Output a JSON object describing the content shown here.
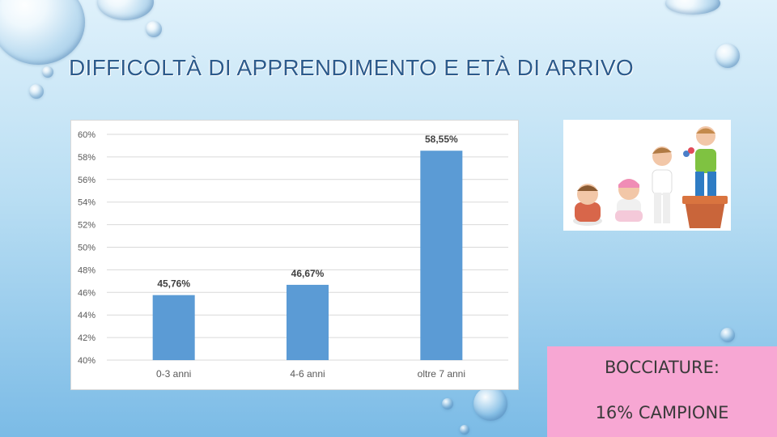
{
  "slide": {
    "title": "DIFFICOLTÀ DI APPRENDIMENTO E ETÀ DI ARRIVO",
    "callout": {
      "line1": "BOCCIATURE:",
      "line2": "16% CAMPIONE",
      "background": "#f7a7d3"
    },
    "photo_alt": "children-growing-from-flower-pot"
  },
  "chart_data": {
    "type": "bar",
    "categories": [
      "0-3 anni",
      "4-6 anni",
      "oltre 7 anni"
    ],
    "values": [
      45.76,
      46.67,
      58.55
    ],
    "data_labels": [
      "45,76%",
      "46,67%",
      "58,55%"
    ],
    "y_tick_labels": [
      "40%",
      "42%",
      "44%",
      "46%",
      "48%",
      "50%",
      "52%",
      "54%",
      "56%",
      "58%",
      "60%"
    ],
    "ylim": [
      40,
      60
    ],
    "title": "",
    "xlabel": "",
    "ylabel": "",
    "grid": true,
    "bar_color": "#5b9bd5"
  }
}
